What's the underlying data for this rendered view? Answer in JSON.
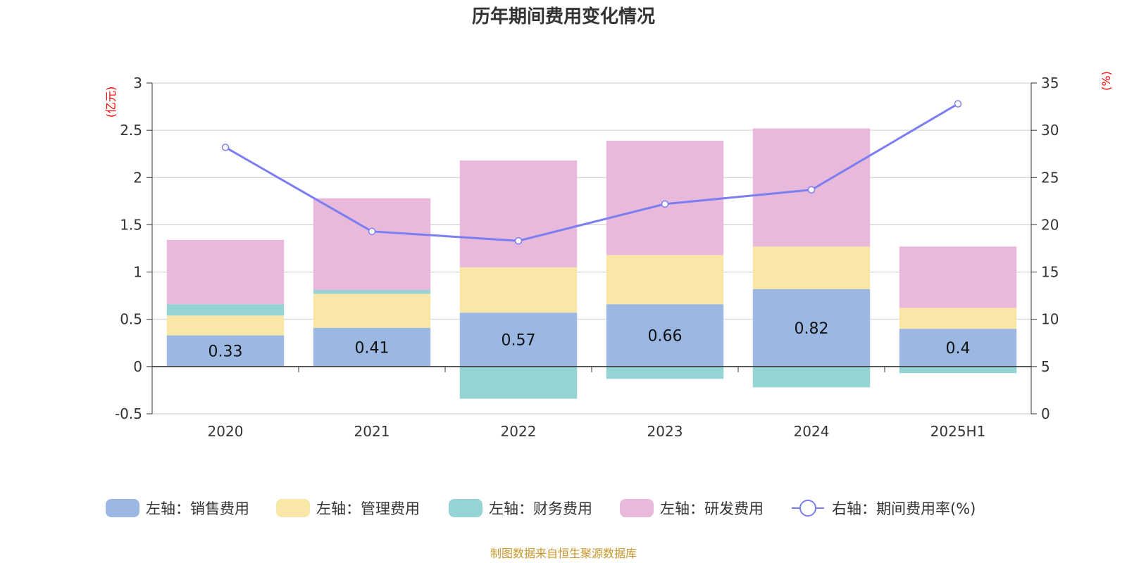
{
  "chart_data": {
    "type": "bar",
    "title": "历年期间费用变化情况",
    "categories": [
      "2020",
      "2021",
      "2022",
      "2023",
      "2024",
      "2025H1"
    ],
    "left_axis": {
      "unit": "(亿元)",
      "ylim": [
        -0.5,
        3
      ],
      "ticks": [
        -0.5,
        0,
        0.5,
        1,
        1.5,
        2,
        2.5,
        3
      ]
    },
    "right_axis": {
      "unit": "(%)",
      "ylim": [
        0,
        35
      ],
      "ticks": [
        0,
        5,
        10,
        15,
        20,
        25,
        30,
        35
      ]
    },
    "series": [
      {
        "name": "左轴：销售费用",
        "type": "bar",
        "axis": "left",
        "color": "#9bb8e2",
        "values": [
          0.33,
          0.41,
          0.57,
          0.66,
          0.82,
          0.4
        ],
        "labels": [
          "0.33",
          "0.41",
          "0.57",
          "0.66",
          "0.82",
          "0.4"
        ]
      },
      {
        "name": "左轴：管理费用",
        "type": "bar",
        "axis": "left",
        "color": "#f8e7a7",
        "values": [
          0.21,
          0.36,
          0.48,
          0.52,
          0.45,
          0.22
        ]
      },
      {
        "name": "左轴：财务费用",
        "type": "bar",
        "axis": "left",
        "color": "#96d3d4",
        "values": [
          0.12,
          0.04,
          -0.34,
          -0.13,
          -0.22,
          -0.07
        ]
      },
      {
        "name": "左轴：研发费用",
        "type": "bar",
        "axis": "left",
        "color": "#e8b9da",
        "values": [
          0.68,
          0.97,
          1.13,
          1.21,
          1.25,
          0.65
        ]
      },
      {
        "name": "右轴：期间费用率(%)",
        "type": "line",
        "axis": "right",
        "color": "#7b7ef0",
        "values": [
          28.2,
          19.3,
          18.3,
          22.2,
          23.7,
          32.8
        ]
      }
    ],
    "grid": true,
    "legend_position": "bottom"
  },
  "source_text": "制图数据来自恒生聚源数据库"
}
